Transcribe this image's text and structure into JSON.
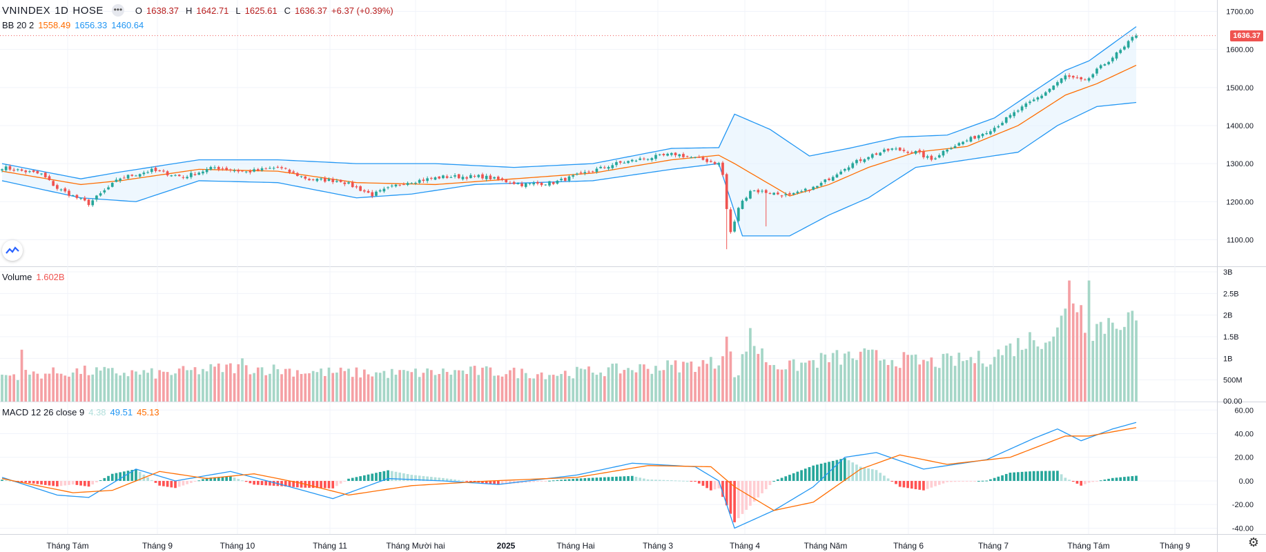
{
  "symbol": {
    "name": "VNINDEX",
    "interval": "1D",
    "exchange": "HOSE",
    "menu_icon": "ellipsis-icon"
  },
  "ohlc": {
    "o_key": "O",
    "o": "1638.37",
    "h_key": "H",
    "h": "1642.71",
    "l_key": "L",
    "l": "1625.61",
    "c_key": "C",
    "c": "1636.37",
    "change": "+6.37 (+0.39%)"
  },
  "bb_legend": {
    "label": "BB 20 2",
    "basis": "1558.49",
    "upper": "1656.33",
    "lower": "1460.64"
  },
  "volume_legend": {
    "label": "Volume",
    "value": "1.602B"
  },
  "macd_legend": {
    "label": "MACD 12 26 close 9",
    "hist": "4.38",
    "macd": "49.51",
    "signal": "45.13"
  },
  "last_price_badge": "1636.37",
  "colors": {
    "up": "#26a69a",
    "down": "#ef5350",
    "bb_band": "#2196f3",
    "bb_basis": "#ff6d00",
    "bb_fill": "#e3f2fd",
    "macd_line": "#2196f3",
    "signal_line": "#ff6d00",
    "vol_up": "#a5d6c7",
    "vol_down": "#f5a0a4",
    "hist_up_strong": "#26a69a",
    "hist_up_weak": "#b2dfdb",
    "hist_down_strong": "#ff5252",
    "hist_down_weak": "#ffcdd2"
  },
  "chart_data": {
    "type": "candlestick",
    "title": "VNINDEX 1D HOSE",
    "price_axis": {
      "ticks": [
        "1700.00",
        "1600.00",
        "1500.00",
        "1400.00",
        "1300.00",
        "1200.00",
        "1100.00"
      ],
      "ylim": [
        1030,
        1730
      ]
    },
    "volume_axis": {
      "ticks": [
        "3B",
        "2.5B",
        "2B",
        "1.5B",
        "1B",
        "500M",
        "00.00"
      ],
      "ylim": [
        0,
        3000
      ]
    },
    "macd_axis": {
      "ticks": [
        "60.00",
        "40.00",
        "20.00",
        "0.00",
        "-20.00",
        "-40.00"
      ],
      "ylim": [
        -45,
        66
      ]
    },
    "time_axis": [
      "Tháng Tám",
      "Tháng 9",
      "Tháng 10",
      "Tháng 11",
      "Tháng Mười hai",
      "2025",
      "Tháng Hai",
      "Tháng 3",
      "Tháng 4",
      "Tháng Năm",
      "Tháng 6",
      "Tháng 7",
      "Tháng Tám",
      "Tháng 9"
    ],
    "time_axis_bold": "2025",
    "close_anchors": [
      [
        0,
        1290
      ],
      [
        10,
        1272
      ],
      [
        14,
        1235
      ],
      [
        22,
        1195
      ],
      [
        30,
        1262
      ],
      [
        38,
        1282
      ],
      [
        46,
        1265
      ],
      [
        54,
        1290
      ],
      [
        62,
        1278
      ],
      [
        70,
        1290
      ],
      [
        78,
        1258
      ],
      [
        86,
        1255
      ],
      [
        94,
        1218
      ],
      [
        102,
        1250
      ],
      [
        112,
        1265
      ],
      [
        122,
        1266
      ],
      [
        132,
        1245
      ],
      [
        140,
        1250
      ],
      [
        148,
        1275
      ],
      [
        156,
        1300
      ],
      [
        164,
        1315
      ],
      [
        171,
        1325
      ],
      [
        178,
        1310
      ],
      [
        182,
        1300
      ],
      [
        183,
        1270
      ],
      [
        184,
        1180
      ],
      [
        185,
        1120
      ],
      [
        186,
        1145
      ],
      [
        187,
        1185
      ],
      [
        190,
        1230
      ],
      [
        194,
        1225
      ],
      [
        200,
        1215
      ],
      [
        207,
        1240
      ],
      [
        214,
        1290
      ],
      [
        220,
        1320
      ],
      [
        226,
        1338
      ],
      [
        232,
        1330
      ],
      [
        236,
        1310
      ],
      [
        240,
        1340
      ],
      [
        246,
        1365
      ],
      [
        252,
        1395
      ],
      [
        258,
        1440
      ],
      [
        264,
        1480
      ],
      [
        270,
        1530
      ],
      [
        275,
        1515
      ],
      [
        278,
        1545
      ],
      [
        282,
        1580
      ],
      [
        285,
        1605
      ],
      [
        287,
        1630
      ],
      [
        288,
        1636.37
      ]
    ],
    "bb_upper_anchors": [
      [
        0,
        1300
      ],
      [
        20,
        1260
      ],
      [
        30,
        1278
      ],
      [
        50,
        1310
      ],
      [
        70,
        1310
      ],
      [
        90,
        1300
      ],
      [
        110,
        1300
      ],
      [
        130,
        1290
      ],
      [
        150,
        1300
      ],
      [
        170,
        1340
      ],
      [
        182,
        1342
      ],
      [
        186,
        1430
      ],
      [
        195,
        1390
      ],
      [
        205,
        1320
      ],
      [
        215,
        1340
      ],
      [
        228,
        1370
      ],
      [
        240,
        1375
      ],
      [
        252,
        1420
      ],
      [
        262,
        1490
      ],
      [
        270,
        1545
      ],
      [
        276,
        1570
      ],
      [
        288,
        1660
      ]
    ],
    "bb_basis_anchors": [
      [
        0,
        1280
      ],
      [
        20,
        1245
      ],
      [
        30,
        1255
      ],
      [
        50,
        1285
      ],
      [
        70,
        1280
      ],
      [
        90,
        1250
      ],
      [
        110,
        1245
      ],
      [
        130,
        1260
      ],
      [
        150,
        1275
      ],
      [
        170,
        1310
      ],
      [
        182,
        1322
      ],
      [
        186,
        1300
      ],
      [
        200,
        1215
      ],
      [
        210,
        1245
      ],
      [
        220,
        1290
      ],
      [
        232,
        1330
      ],
      [
        245,
        1345
      ],
      [
        258,
        1400
      ],
      [
        270,
        1480
      ],
      [
        278,
        1510
      ],
      [
        288,
        1558.49
      ]
    ],
    "bb_lower_anchors": [
      [
        0,
        1255
      ],
      [
        20,
        1210
      ],
      [
        34,
        1200
      ],
      [
        50,
        1255
      ],
      [
        70,
        1250
      ],
      [
        90,
        1210
      ],
      [
        104,
        1220
      ],
      [
        120,
        1245
      ],
      [
        150,
        1255
      ],
      [
        170,
        1285
      ],
      [
        182,
        1300
      ],
      [
        188,
        1110
      ],
      [
        200,
        1110
      ],
      [
        210,
        1165
      ],
      [
        220,
        1210
      ],
      [
        232,
        1290
      ],
      [
        245,
        1310
      ],
      [
        258,
        1330
      ],
      [
        268,
        1400
      ],
      [
        278,
        1450
      ],
      [
        288,
        1460.64
      ]
    ],
    "volume_anchors": [
      [
        0,
        600
      ],
      [
        20,
        700
      ],
      [
        40,
        640
      ],
      [
        60,
        800
      ],
      [
        80,
        680
      ],
      [
        100,
        650
      ],
      [
        120,
        700
      ],
      [
        140,
        640
      ],
      [
        160,
        760
      ],
      [
        175,
        850
      ],
      [
        182,
        900
      ],
      [
        184,
        1700
      ],
      [
        186,
        500
      ],
      [
        190,
        1400
      ],
      [
        195,
        900
      ],
      [
        200,
        800
      ],
      [
        210,
        1000
      ],
      [
        220,
        1050
      ],
      [
        235,
        900
      ],
      [
        250,
        1000
      ],
      [
        260,
        1400
      ],
      [
        268,
        1600
      ],
      [
        272,
        2500
      ],
      [
        276,
        1700
      ],
      [
        280,
        1800
      ],
      [
        285,
        2000
      ],
      [
        288,
        1602
      ]
    ],
    "volume_spikes": [
      [
        5,
        1200
      ],
      [
        61,
        1000
      ],
      [
        190,
        1700
      ],
      [
        271,
        2800
      ],
      [
        276,
        2800
      ],
      [
        287,
        2100
      ]
    ],
    "macd_anchors": [
      [
        0,
        3
      ],
      [
        14,
        -12
      ],
      [
        22,
        -14
      ],
      [
        34,
        10
      ],
      [
        44,
        0
      ],
      [
        58,
        8
      ],
      [
        72,
        -4
      ],
      [
        84,
        -15
      ],
      [
        98,
        2
      ],
      [
        112,
        0
      ],
      [
        126,
        -3
      ],
      [
        146,
        5
      ],
      [
        160,
        15
      ],
      [
        176,
        12
      ],
      [
        182,
        0
      ],
      [
        186,
        -40
      ],
      [
        196,
        -25
      ],
      [
        206,
        -5
      ],
      [
        214,
        20
      ],
      [
        222,
        24
      ],
      [
        234,
        10
      ],
      [
        250,
        18
      ],
      [
        262,
        36
      ],
      [
        268,
        44
      ],
      [
        274,
        34
      ],
      [
        282,
        44
      ],
      [
        288,
        49.51
      ]
    ],
    "signal_anchors": [
      [
        0,
        2
      ],
      [
        18,
        -10
      ],
      [
        28,
        -8
      ],
      [
        40,
        8
      ],
      [
        52,
        2
      ],
      [
        64,
        6
      ],
      [
        76,
        -2
      ],
      [
        88,
        -12
      ],
      [
        104,
        -4
      ],
      [
        124,
        0
      ],
      [
        146,
        3
      ],
      [
        164,
        13
      ],
      [
        180,
        12
      ],
      [
        186,
        -5
      ],
      [
        196,
        -25
      ],
      [
        206,
        -18
      ],
      [
        218,
        10
      ],
      [
        228,
        22
      ],
      [
        240,
        14
      ],
      [
        256,
        20
      ],
      [
        270,
        38
      ],
      [
        276,
        38
      ],
      [
        288,
        45.13
      ]
    ],
    "bar_count": 289
  }
}
